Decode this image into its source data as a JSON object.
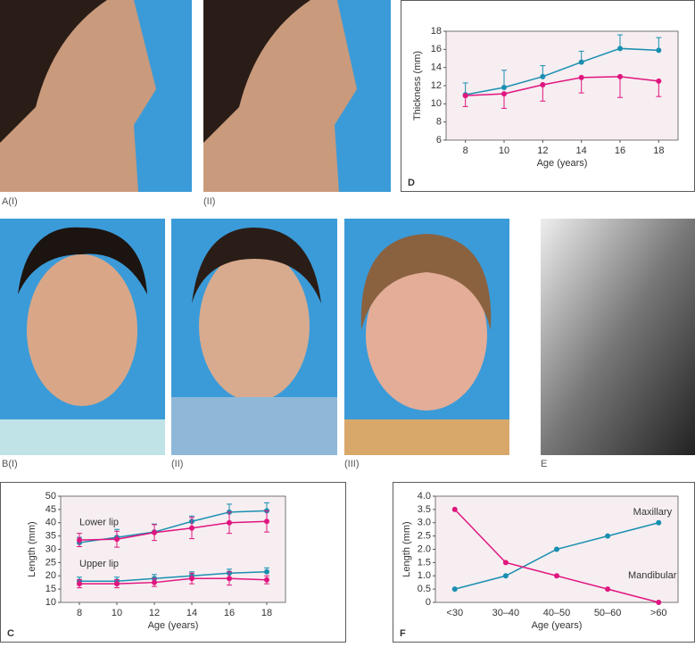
{
  "photos": [
    {
      "label": "A(I)"
    },
    {
      "label": "(II)"
    },
    {
      "label": "B(I)"
    },
    {
      "label": "(II)"
    },
    {
      "label": "(III)"
    },
    {
      "label": "E"
    }
  ],
  "chart_data": [
    {
      "type": "line",
      "panel": "D",
      "x_label": "Age (years)",
      "y_label": "Thickness (mm)",
      "x": [
        8,
        10,
        12,
        14,
        16,
        18
      ],
      "xlim": [
        7,
        19
      ],
      "xticks": [
        8,
        10,
        12,
        14,
        16,
        18
      ],
      "ylim": [
        6,
        18
      ],
      "yticks": [
        6,
        8,
        10,
        12,
        14,
        16,
        18
      ],
      "series": [
        {
          "color": "#1a8fb0",
          "values": [
            11,
            11.8,
            13,
            14.6,
            16.1,
            15.9
          ],
          "errors": [
            1.3,
            1.9,
            1.2,
            1.2,
            1.5,
            1.4
          ],
          "error_direction": "up"
        },
        {
          "color": "#e0157f",
          "values": [
            10.9,
            11.1,
            12.1,
            12.9,
            13,
            12.5
          ],
          "errors": [
            1.2,
            1.6,
            1.8,
            1.7,
            2.3,
            1.7
          ],
          "error_direction": "down"
        }
      ]
    },
    {
      "type": "line",
      "panel": "C",
      "x_label": "Age (years)",
      "y_label": "Length (mm)",
      "x": [
        8,
        10,
        12,
        14,
        16,
        18
      ],
      "xlim": [
        7,
        19
      ],
      "xticks": [
        8,
        10,
        12,
        14,
        16,
        18
      ],
      "ylim": [
        10,
        50
      ],
      "yticks": [
        10,
        15,
        20,
        25,
        30,
        35,
        40,
        45,
        50
      ],
      "annotations": [
        {
          "text": "Lower lip",
          "x": 8,
          "y": 40
        },
        {
          "text": "Upper lip",
          "x": 8,
          "y": 24.5
        }
      ],
      "series": [
        {
          "color": "#1a8fb0",
          "values": [
            32.5,
            34.5,
            36.5,
            40.5,
            44,
            44.5
          ],
          "errors": [
            2,
            3,
            3,
            2,
            3,
            3
          ],
          "error_direction": "up"
        },
        {
          "color": "#e0157f",
          "values": [
            33.5,
            33.8,
            36.3,
            38,
            40,
            40.5
          ],
          "errors": [
            2.5,
            3,
            3,
            4,
            4,
            4
          ],
          "error_direction": "both"
        },
        {
          "color": "#1a8fb0",
          "values": [
            18,
            18,
            19,
            20,
            21,
            21.5
          ],
          "errors": [
            1.5,
            1.5,
            1.5,
            1.5,
            1.5,
            1.5
          ],
          "error_direction": "up"
        },
        {
          "color": "#e0157f",
          "values": [
            17,
            17,
            17.5,
            19,
            19,
            18.5
          ],
          "errors": [
            1.5,
            1.5,
            1.5,
            2,
            2.5,
            1.5
          ],
          "error_direction": "both"
        }
      ]
    },
    {
      "type": "category_line",
      "panel": "F",
      "x_label": "Age (years)",
      "y_label": "Length (mm)",
      "categories": [
        "<30",
        "30–40",
        "40–50",
        "50–60",
        ">60"
      ],
      "ylim": [
        0,
        4
      ],
      "yticks": [
        0,
        0.5,
        {
          "value": 1,
          "label": "1.0"
        },
        1.5,
        {
          "value": 2,
          "label": "2.0"
        },
        2.5,
        {
          "value": 3,
          "label": "3.0"
        },
        3.5,
        {
          "value": 4,
          "label": "4.0"
        }
      ],
      "annotations": [
        {
          "text": "Maxillary",
          "x": 3.5,
          "y": 3.4
        },
        {
          "text": "Mandibular",
          "x": 3.4,
          "y": 1.0
        }
      ],
      "series": [
        {
          "color": "#1a8fb0",
          "values": [
            0.5,
            1,
            2,
            2.5,
            3
          ]
        },
        {
          "color": "#e0157f",
          "values": [
            3.5,
            1.5,
            1,
            0.5,
            0
          ]
        }
      ]
    }
  ]
}
